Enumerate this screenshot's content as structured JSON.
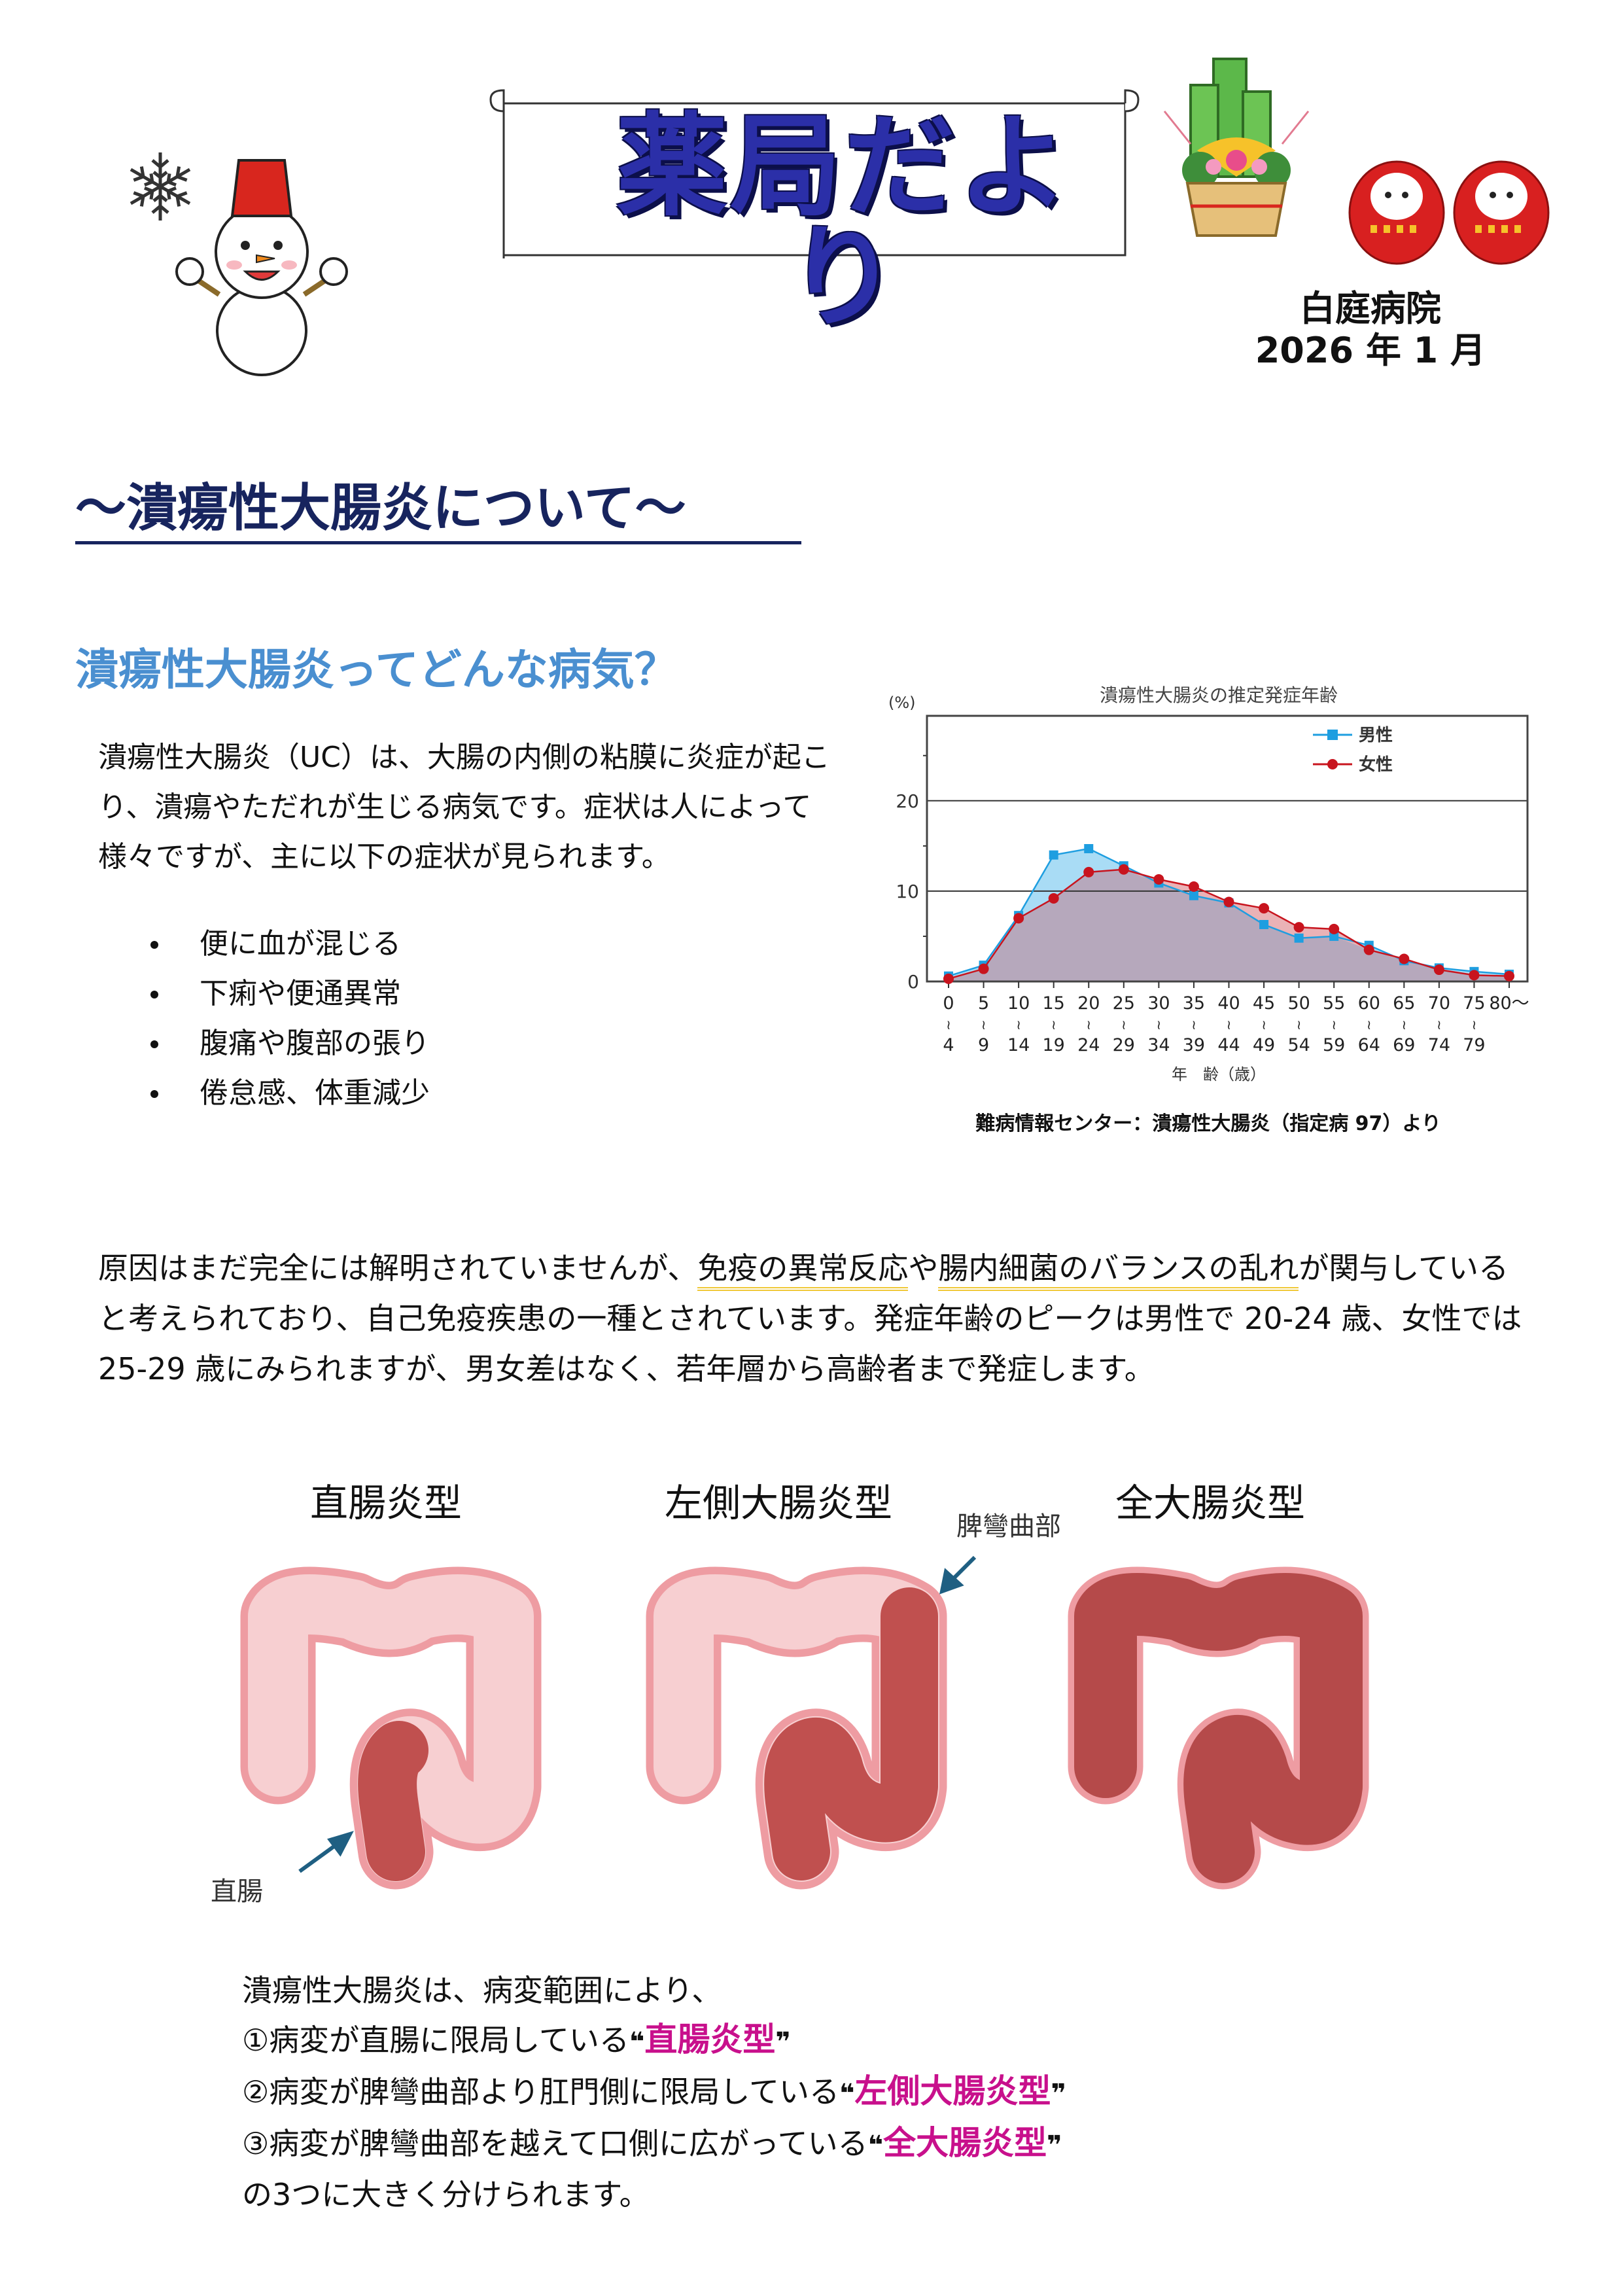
{
  "header": {
    "title": "薬局だより",
    "hospital": "白庭病院",
    "date": "2026 年 1 月",
    "decorations": [
      "snowflake-icon",
      "snowman-illustration",
      "kadomatsu-illustration",
      "daruma-illustration"
    ]
  },
  "main_heading": "～潰瘍性大腸炎について～",
  "section1": {
    "heading": "潰瘍性大腸炎ってどんな病気？",
    "paragraph": "潰瘍性大腸炎（UC）は、大腸の内側の粘膜に炎症が起こり、潰瘍やただれが生じる病気です。症状は人によって様々ですが、主に以下の症状が見られます。",
    "symptoms": [
      "便に血が混じる",
      "下痢や便通異常",
      "腹痛や腹部の張り",
      "倦怠感、体重減少"
    ]
  },
  "chart_data": {
    "type": "area",
    "title": "潰瘍性大腸炎の推定発症年齢",
    "ylabel": "(%)",
    "xlabel": "年　齢（歳）",
    "ylim": [
      0,
      29.4
    ],
    "yticks": [
      "0",
      "10",
      "20"
    ],
    "grid": true,
    "legend": "top-right",
    "categories": [
      {
        "top": "0",
        "bottom": "4"
      },
      {
        "top": "5",
        "bottom": "9"
      },
      {
        "top": "10",
        "bottom": "14"
      },
      {
        "top": "15",
        "bottom": "19"
      },
      {
        "top": "20",
        "bottom": "24"
      },
      {
        "top": "25",
        "bottom": "29"
      },
      {
        "top": "30",
        "bottom": "34"
      },
      {
        "top": "35",
        "bottom": "39"
      },
      {
        "top": "40",
        "bottom": "44"
      },
      {
        "top": "45",
        "bottom": "49"
      },
      {
        "top": "50",
        "bottom": "54"
      },
      {
        "top": "55",
        "bottom": "59"
      },
      {
        "top": "60",
        "bottom": "64"
      },
      {
        "top": "65",
        "bottom": "69"
      },
      {
        "top": "70",
        "bottom": "74"
      },
      {
        "top": "75",
        "bottom": "79"
      },
      {
        "top": "80～",
        "bottom": ""
      }
    ],
    "series": [
      {
        "name": "男性",
        "color": "#1e9ee0",
        "fill": "#a9dcf5",
        "marker": "square",
        "values": [
          0.6,
          1.8,
          7.3,
          14.0,
          14.7,
          12.8,
          10.9,
          9.5,
          8.7,
          6.3,
          4.8,
          5.0,
          4.0,
          2.3,
          1.5,
          1.1,
          0.8
        ]
      },
      {
        "name": "女性",
        "color": "#c8141e",
        "fill": "#eab2b6",
        "marker": "circle",
        "values": [
          0.3,
          1.4,
          7.0,
          9.2,
          12.1,
          12.4,
          11.3,
          10.5,
          8.8,
          8.1,
          6.0,
          5.8,
          3.5,
          2.5,
          1.3,
          0.7,
          0.6
        ]
      }
    ],
    "overlap_fill": "#b6a8bc",
    "source": "難病情報センター：潰瘍性大腸炎（指定病 97）より"
  },
  "section2": {
    "p_start": "原因はまだ完全には解明されていませんが、",
    "hl1": "免疫の異常反応",
    "p_mid": "や",
    "hl2": "腸内細菌のバランスの乱れ",
    "p_end": "が関与していると考えられており、自己免疫疾患の一種とされています。発症年齢のピークは男性で 20-24 歳、女性では 25-29 歳にみられますが、男女差はなく、若年層から高齢者まで発症します。"
  },
  "diagrams": {
    "types": [
      "直腸炎型",
      "左側大腸炎型",
      "全大腸炎型"
    ],
    "label_rectum": "直腸",
    "label_flexure": "脾彎曲部",
    "colors": {
      "healthy": "#f7cfd1",
      "outline": "#ee9ca2",
      "inflamed": "#c0504f"
    }
  },
  "section3": {
    "intro": "潰瘍性大腸炎は、病変範囲により、",
    "items": [
      {
        "text": "①病変が直腸に限局している",
        "type": "直腸炎型"
      },
      {
        "text": "②病変が脾彎曲部より肛門側に限局している",
        "type": "左側大腸炎型"
      },
      {
        "text": "③病変が脾彎曲部を越えて口側に広がっている",
        "type": "全大腸炎型"
      }
    ],
    "open_quote": "❝",
    "close_quote": "❞",
    "outro": "の3つに大きく分けられます。",
    "accent": "#c8108c"
  }
}
